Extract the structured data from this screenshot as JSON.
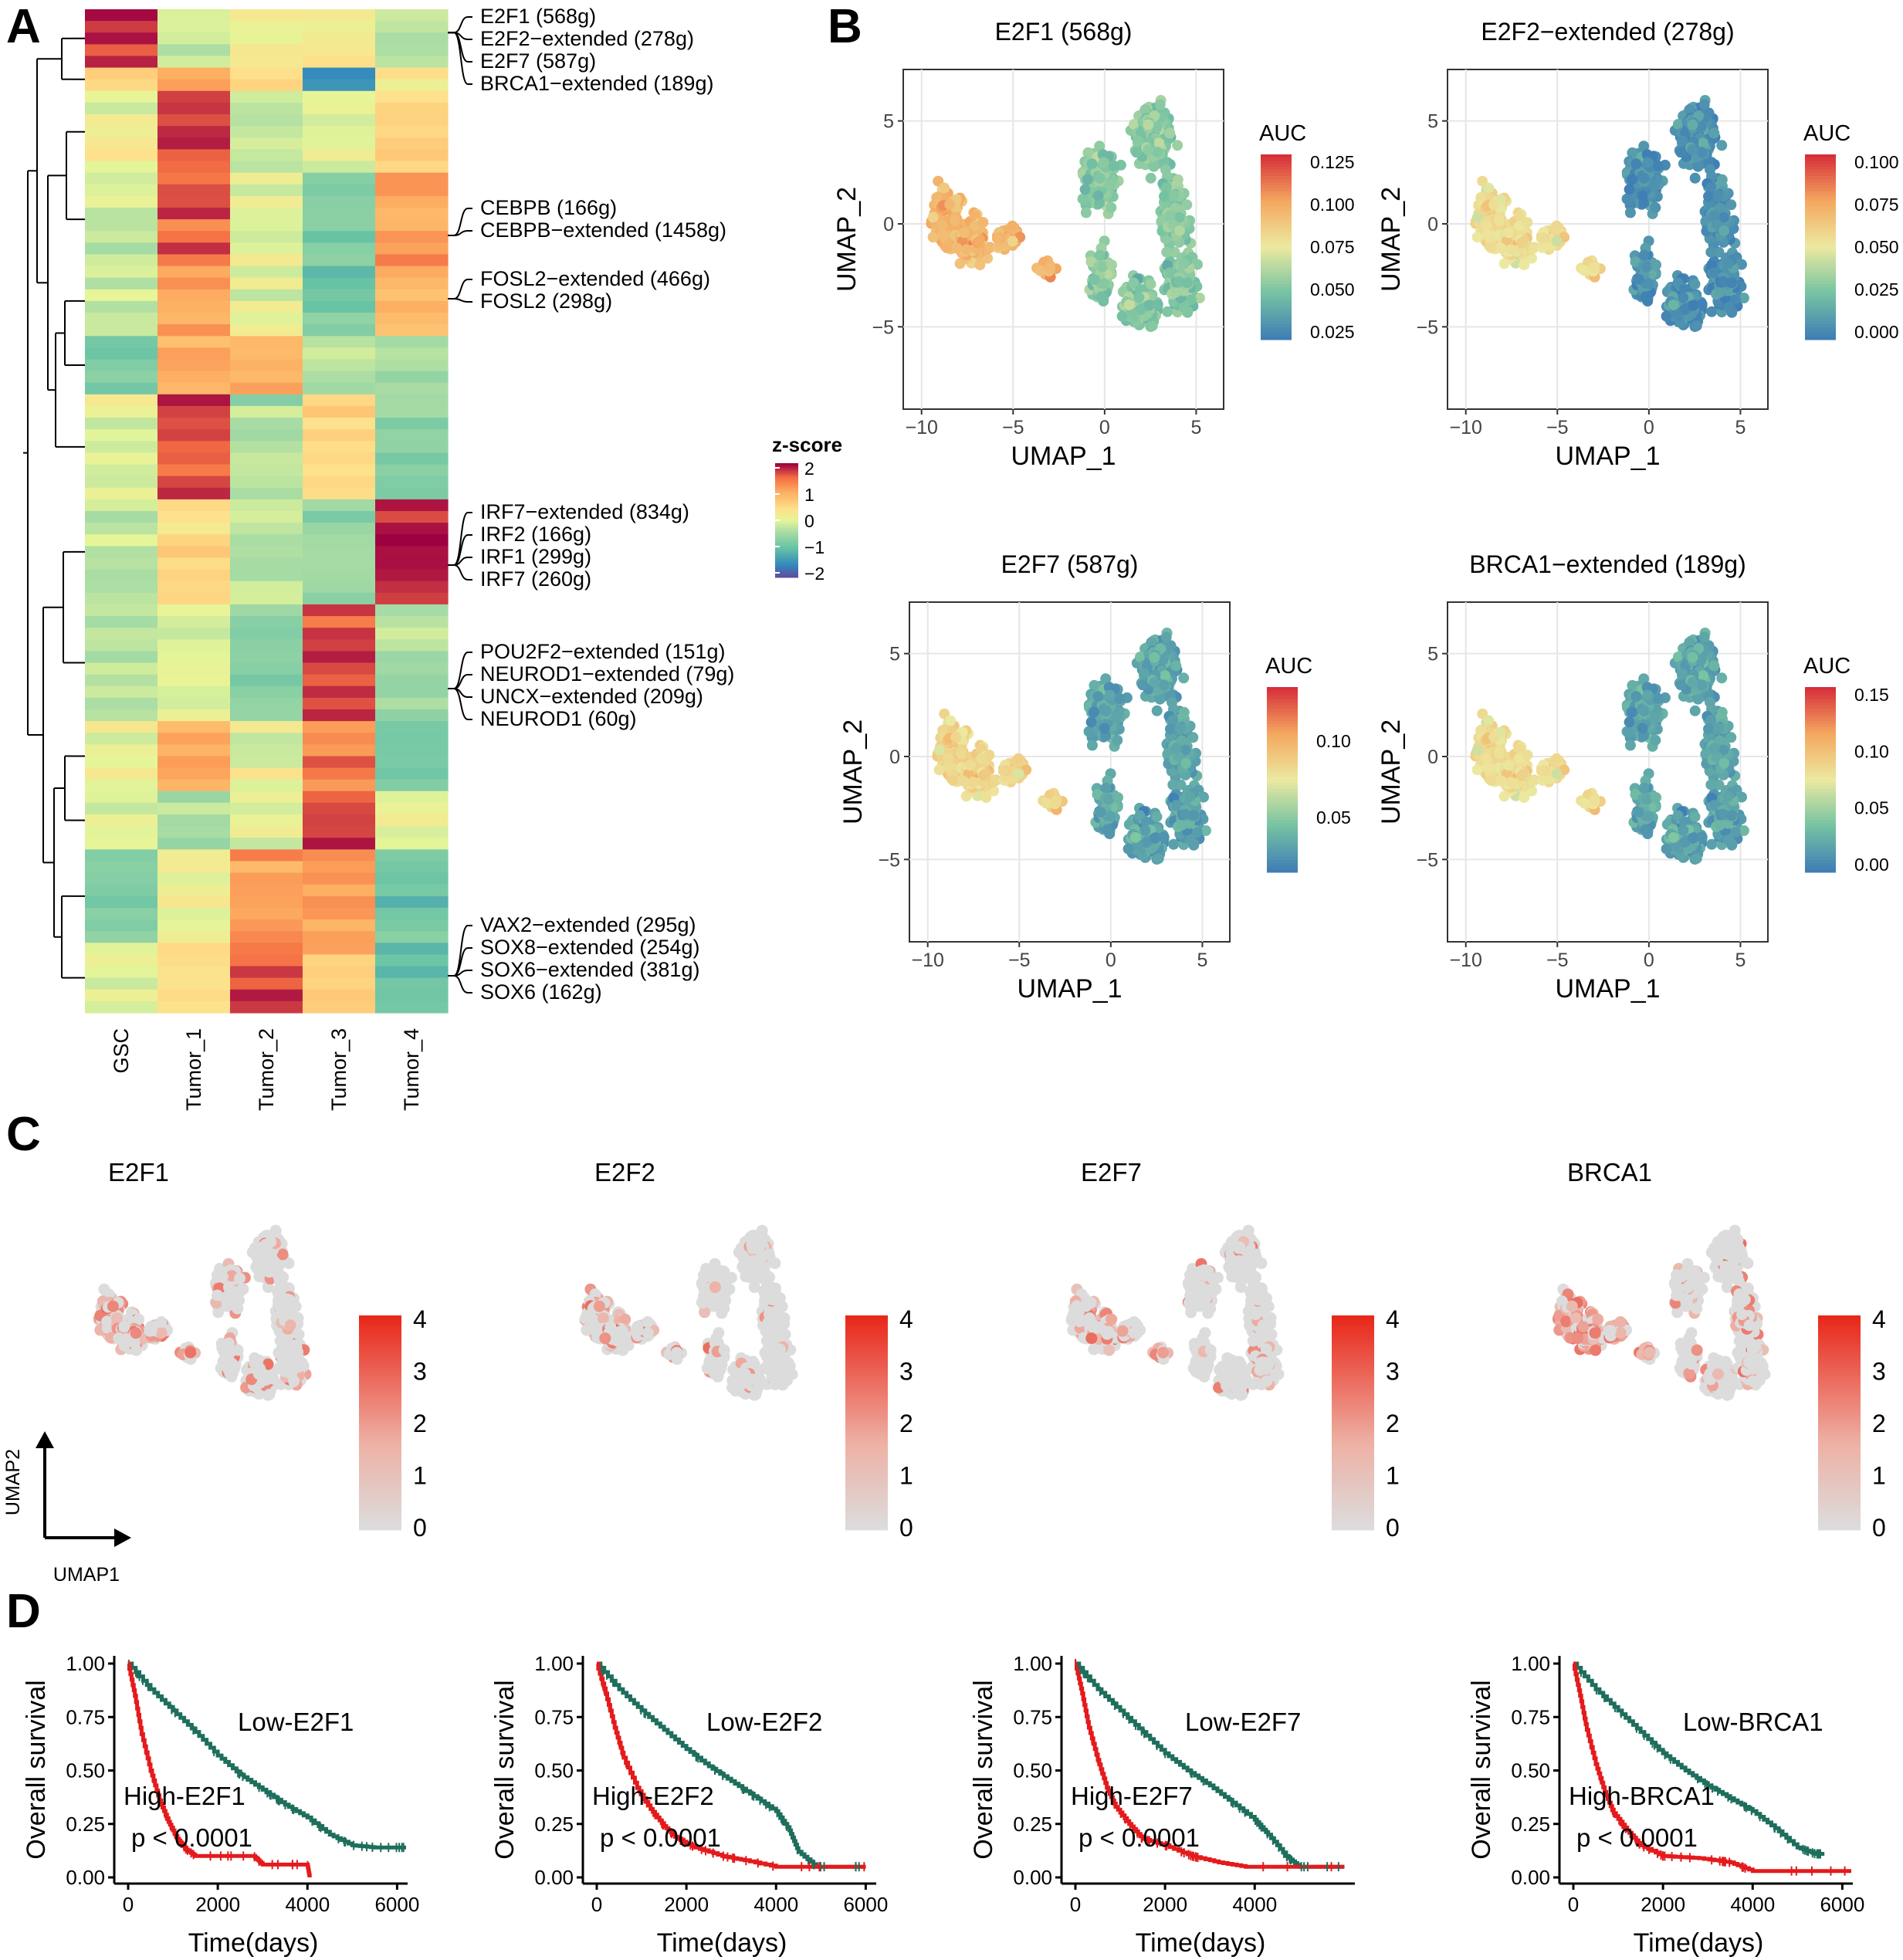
{
  "panel_labels": [
    "A",
    "B",
    "C",
    "D"
  ],
  "chart_data": [
    {
      "panel": "A",
      "type": "heatmap",
      "columns": [
        "GSC",
        "Tumor_1",
        "Tumor_2",
        "Tumor_3",
        "Tumor_4"
      ],
      "legend": {
        "title": "z-score",
        "ticks": [
          "2",
          "1",
          "0",
          "−1",
          "−2"
        ]
      },
      "blocks": [
        {
          "rows": 5,
          "z": [
            2.0,
            -0.2,
            0.1,
            0.3,
            -0.4
          ]
        },
        {
          "rows": 2,
          "z": [
            0.6,
            1.2,
            0.4,
            -1.5,
            0.1
          ]
        },
        {
          "rows": 7,
          "z": [
            0.2,
            1.8,
            -0.3,
            0.0,
            0.6
          ]
        },
        {
          "rows": 8,
          "z": [
            -0.3,
            1.7,
            0.1,
            -0.8,
            1.2
          ]
        },
        {
          "rows": 6,
          "z": [
            -0.2,
            1.2,
            0.0,
            -1.0,
            1.0
          ]
        },
        {
          "rows": 5,
          "z": [
            -0.9,
            0.9,
            1.0,
            -0.4,
            -0.5
          ]
        },
        {
          "rows": 9,
          "z": [
            0.0,
            1.9,
            -0.4,
            0.5,
            -0.6
          ]
        },
        {
          "rows": 9,
          "z": [
            -0.4,
            0.5,
            -0.3,
            -0.5,
            2.0
          ]
        },
        {
          "rows": 10,
          "z": [
            -0.3,
            -0.2,
            -0.6,
            1.9,
            -0.5
          ]
        },
        {
          "rows": 6,
          "z": [
            0.1,
            1.0,
            0.0,
            1.5,
            -0.8
          ]
        },
        {
          "rows": 5,
          "z": [
            -0.2,
            -0.4,
            0.0,
            1.8,
            0.0
          ]
        },
        {
          "rows": 8,
          "z": [
            -0.8,
            0.0,
            1.2,
            1.4,
            -0.9
          ]
        },
        {
          "rows": 6,
          "z": [
            0.0,
            0.3,
            1.8,
            0.8,
            -1.0
          ]
        }
      ],
      "row_labels": [
        "E2F1 (568g)",
        "E2F2−extended (278g)",
        "E2F7 (587g)",
        "BRCA1−extended (189g)",
        "CEBPB (166g)",
        "CEBPB−extended (1458g)",
        "FOSL2−extended (466g)",
        "FOSL2 (298g)",
        "IRF7−extended (834g)",
        "IRF2 (166g)",
        "IRF1 (299g)",
        "IRF7 (260g)",
        "POU2F2−extended (151g)",
        "NEUROD1−extended (79g)",
        "UNCX−extended (209g)",
        "NEUROD1 (60g)",
        "VAX2−extended (295g)",
        "SOX8−extended (254g)",
        "SOX6−extended (381g)",
        "SOX6 (162g)"
      ]
    },
    {
      "panel": "B",
      "type": "scatter",
      "xlabel": "UMAP_1",
      "ylabel": "UMAP_2",
      "xticks": [
        -10,
        -5,
        0,
        5
      ],
      "yticks": [
        -5,
        0,
        5
      ],
      "xlim": [
        -11,
        6.5
      ],
      "ylim": [
        -9,
        7.5
      ],
      "colorbar_title": "AUC",
      "plots": [
        {
          "title": "E2F1 (568g)",
          "ticks": [
            "0.125",
            "0.100",
            "0.075",
            "0.050",
            "0.025"
          ],
          "left_level": 0.7,
          "right_level": 0.3
        },
        {
          "title": "E2F2−extended (278g)",
          "ticks": [
            "0.100",
            "0.075",
            "0.050",
            "0.025",
            "0.000"
          ],
          "left_level": 0.55,
          "right_level": 0.08
        },
        {
          "title": "E2F7 (587g)",
          "ticks": [
            "0.10",
            "0.05"
          ],
          "left_level": 0.58,
          "right_level": 0.15
        },
        {
          "title": "BRCA1−extended (189g)",
          "ticks": [
            "0.15",
            "0.10",
            "0.05",
            "0.00"
          ],
          "left_level": 0.55,
          "right_level": 0.15
        }
      ]
    },
    {
      "panel": "C",
      "type": "scatter",
      "titles": [
        "E2F1",
        "E2F2",
        "E2F7",
        "BRCA1"
      ],
      "colorbar_ticks": [
        "4",
        "3",
        "2",
        "1",
        "0"
      ],
      "density": [
        0.5,
        0.3,
        0.35,
        0.55
      ],
      "axis_x": "UMAP1",
      "axis_y": "UMAP2"
    },
    {
      "panel": "D",
      "type": "line",
      "ylabel": "Overall survival",
      "xlabel": "Time(days)",
      "yticks": [
        "0.00",
        "0.25",
        "0.50",
        "0.75",
        "1.00"
      ],
      "xticks": [
        0,
        2000,
        4000,
        6000
      ],
      "p_value": "p < 0.0001",
      "colors": {
        "low": "#1e6e5c",
        "high": "#e41a1c"
      },
      "plots": [
        {
          "low_label": "Low-E2F1",
          "high_label": "High-E2F1",
          "xticks": [
            0,
            2000,
            4000,
            6000
          ],
          "low": [
            [
              0,
              1.0
            ],
            [
              500,
              0.88
            ],
            [
              1000,
              0.78
            ],
            [
              1500,
              0.68
            ],
            [
              2000,
              0.57
            ],
            [
              2500,
              0.48
            ],
            [
              3000,
              0.41
            ],
            [
              3500,
              0.34
            ],
            [
              4000,
              0.28
            ],
            [
              4500,
              0.2
            ],
            [
              5000,
              0.15
            ],
            [
              5500,
              0.14
            ],
            [
              6000,
              0.14
            ],
            [
              6200,
              0.14
            ]
          ],
          "high": [
            [
              0,
              1.0
            ],
            [
              150,
              0.85
            ],
            [
              300,
              0.67
            ],
            [
              500,
              0.5
            ],
            [
              700,
              0.36
            ],
            [
              900,
              0.26
            ],
            [
              1100,
              0.18
            ],
            [
              1300,
              0.13
            ],
            [
              1500,
              0.1
            ],
            [
              2000,
              0.1
            ],
            [
              2800,
              0.1
            ],
            [
              3000,
              0.06
            ],
            [
              4000,
              0.06
            ],
            [
              4050,
              0.0
            ]
          ]
        },
        {
          "low_label": "Low-E2F2",
          "high_label": "High-E2F2",
          "xticks": [
            0,
            2000,
            4000,
            6000
          ],
          "low": [
            [
              0,
              1.0
            ],
            [
              500,
              0.88
            ],
            [
              1000,
              0.78
            ],
            [
              1500,
              0.69
            ],
            [
              2000,
              0.6
            ],
            [
              2500,
              0.52
            ],
            [
              3000,
              0.45
            ],
            [
              3500,
              0.38
            ],
            [
              4000,
              0.31
            ],
            [
              4300,
              0.22
            ],
            [
              4500,
              0.12
            ],
            [
              4900,
              0.05
            ],
            [
              5500,
              0.05
            ],
            [
              6000,
              0.05
            ]
          ],
          "high": [
            [
              0,
              1.0
            ],
            [
              200,
              0.86
            ],
            [
              400,
              0.7
            ],
            [
              600,
              0.56
            ],
            [
              900,
              0.42
            ],
            [
              1200,
              0.32
            ],
            [
              1500,
              0.24
            ],
            [
              1800,
              0.18
            ],
            [
              2200,
              0.14
            ],
            [
              2800,
              0.1
            ],
            [
              3300,
              0.08
            ],
            [
              4000,
              0.05
            ],
            [
              6000,
              0.05
            ]
          ]
        },
        {
          "low_label": "Low-E2F7",
          "high_label": "High-E2F7",
          "xticks": [
            0,
            2000,
            4000
          ],
          "low": [
            [
              0,
              1.0
            ],
            [
              500,
              0.88
            ],
            [
              1000,
              0.78
            ],
            [
              1500,
              0.68
            ],
            [
              2000,
              0.58
            ],
            [
              2500,
              0.5
            ],
            [
              3000,
              0.43
            ],
            [
              3500,
              0.35
            ],
            [
              4000,
              0.27
            ],
            [
              4300,
              0.2
            ],
            [
              4700,
              0.1
            ],
            [
              5000,
              0.05
            ],
            [
              5500,
              0.05
            ],
            [
              6000,
              0.05
            ]
          ],
          "high": [
            [
              0,
              1.0
            ],
            [
              150,
              0.86
            ],
            [
              300,
              0.7
            ],
            [
              500,
              0.55
            ],
            [
              700,
              0.42
            ],
            [
              900,
              0.33
            ],
            [
              1200,
              0.25
            ],
            [
              1500,
              0.18
            ],
            [
              2000,
              0.15
            ],
            [
              2600,
              0.1
            ],
            [
              3200,
              0.07
            ],
            [
              3800,
              0.05
            ],
            [
              6000,
              0.05
            ]
          ]
        },
        {
          "low_label": "Low-BRCA1",
          "high_label": "High-BRCA1",
          "xticks": [
            0,
            2000,
            4000,
            6000
          ],
          "low": [
            [
              0,
              1.0
            ],
            [
              500,
              0.88
            ],
            [
              1000,
              0.78
            ],
            [
              1500,
              0.68
            ],
            [
              2000,
              0.58
            ],
            [
              2500,
              0.5
            ],
            [
              3000,
              0.43
            ],
            [
              3500,
              0.37
            ],
            [
              4000,
              0.31
            ],
            [
              4500,
              0.23
            ],
            [
              5000,
              0.14
            ],
            [
              5400,
              0.11
            ],
            [
              5600,
              0.11
            ]
          ],
          "high": [
            [
              0,
              1.0
            ],
            [
              150,
              0.85
            ],
            [
              300,
              0.69
            ],
            [
              500,
              0.53
            ],
            [
              700,
              0.4
            ],
            [
              900,
              0.3
            ],
            [
              1200,
              0.22
            ],
            [
              1500,
              0.15
            ],
            [
              2000,
              0.1
            ],
            [
              2800,
              0.09
            ],
            [
              3500,
              0.07
            ],
            [
              4000,
              0.03
            ],
            [
              6200,
              0.03
            ]
          ]
        }
      ]
    }
  ]
}
